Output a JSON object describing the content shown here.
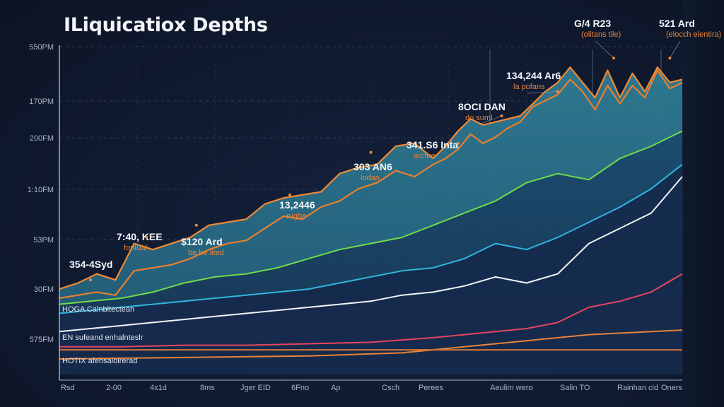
{
  "chart_data": {
    "type": "line",
    "title": "ILiquicatiox Depths",
    "xlabel": "",
    "ylabel": "",
    "grid": true,
    "legend": "none",
    "y_ticks": [
      "550PM",
      "170PM",
      "200FM",
      "1:10FM",
      "53PM",
      "30FM",
      "575FM"
    ],
    "x_ticks": [
      "Rsd",
      "2-00",
      "4x1d",
      "8ms",
      "Jger EID",
      "6Fno",
      "Ap",
      "Csch",
      "Perees",
      "Aeulim wero",
      "Salin TO",
      "Rainhan cid",
      "Oners"
    ],
    "x_range": [
      0,
      100
    ],
    "y_range": [
      0,
      100
    ],
    "series": [
      {
        "name": "Depth upper (orange)",
        "color": "#f08a35",
        "fill": "#2b6f86",
        "x": [
          0,
          3,
          6,
          9,
          12,
          15,
          18,
          21,
          24,
          27,
          30,
          33,
          36,
          39,
          42,
          45,
          48,
          51,
          54,
          57,
          60,
          62,
          64,
          66,
          68,
          70,
          72,
          74,
          76,
          78,
          80,
          82,
          84,
          86,
          88,
          90,
          92,
          94,
          96,
          98,
          100
        ],
        "values": [
          23,
          25,
          28,
          26,
          38,
          36,
          38,
          40,
          44,
          45,
          46,
          51,
          53,
          54,
          55,
          61,
          63,
          64,
          70,
          71,
          66,
          70,
          75,
          79,
          77,
          78,
          79,
          80,
          84,
          88,
          91,
          96,
          91,
          86,
          95,
          86,
          94,
          88,
          96,
          91,
          92
        ]
      },
      {
        "name": "Depth inner (orange)",
        "color": "#e87f2f",
        "x": [
          0,
          3,
          6,
          9,
          12,
          15,
          18,
          21,
          24,
          27,
          30,
          33,
          36,
          39,
          42,
          45,
          48,
          51,
          54,
          57,
          60,
          62,
          64,
          66,
          68,
          70,
          72,
          74,
          76,
          78,
          80,
          82,
          84,
          86,
          88,
          90,
          92,
          94,
          96,
          98,
          100
        ],
        "values": [
          20,
          21,
          22,
          21,
          29,
          30,
          31,
          33,
          36,
          38,
          39,
          43,
          47,
          46,
          50,
          52,
          56,
          58,
          62,
          60,
          64,
          66,
          69,
          74,
          71,
          73,
          76,
          78,
          83,
          85,
          87,
          92,
          88,
          82,
          90,
          84,
          90,
          86,
          95,
          89,
          91
        ]
      },
      {
        "name": "Green band",
        "color": "#6fdc4a",
        "fill": "#1d5673",
        "x": [
          0,
          5,
          10,
          15,
          20,
          25,
          30,
          35,
          40,
          45,
          50,
          55,
          60,
          65,
          70,
          75,
          80,
          85,
          90,
          95,
          100
        ],
        "values": [
          18,
          19,
          20,
          22,
          25,
          27,
          28,
          30,
          33,
          36,
          38,
          40,
          44,
          48,
          52,
          58,
          61,
          59,
          66,
          70,
          75
        ]
      },
      {
        "name": "Cyan line",
        "color": "#2fb6e0",
        "x": [
          0,
          5,
          10,
          15,
          20,
          25,
          30,
          35,
          40,
          45,
          50,
          55,
          60,
          65,
          70,
          75,
          80,
          85,
          90,
          95,
          100
        ],
        "values": [
          15,
          16,
          17,
          18,
          19,
          20,
          21,
          22,
          23,
          25,
          27,
          29,
          30,
          33,
          38,
          36,
          40,
          45,
          50,
          56,
          64
        ]
      },
      {
        "name": "White line",
        "color": "#f2f4f8",
        "x": [
          0,
          5,
          10,
          15,
          20,
          25,
          30,
          35,
          40,
          45,
          50,
          55,
          60,
          65,
          70,
          75,
          80,
          85,
          90,
          95,
          100
        ],
        "values": [
          9,
          10,
          11,
          12,
          13,
          14,
          15,
          16,
          17,
          18,
          19,
          21,
          22,
          24,
          27,
          25,
          28,
          38,
          43,
          48,
          60
        ]
      },
      {
        "name": "Red line",
        "color": "#e8445f",
        "x": [
          0,
          10,
          20,
          30,
          40,
          50,
          60,
          65,
          70,
          75,
          80,
          85,
          90,
          95,
          100
        ],
        "values": [
          4,
          4,
          4.5,
          4.5,
          5,
          5.5,
          7,
          8,
          9,
          10,
          12,
          17,
          19,
          22,
          28
        ]
      },
      {
        "name": "Orange baseline",
        "color": "#e8823a",
        "x": [
          0,
          20,
          40,
          55,
          65,
          75,
          85,
          95,
          100
        ],
        "values": [
          0,
          0.5,
          1,
          2,
          4,
          6,
          8,
          9,
          9.5
        ]
      },
      {
        "name": "Flat orange threshold",
        "color": "#d9753a",
        "x": [
          0,
          100
        ],
        "values": [
          3,
          3
        ]
      }
    ],
    "annotations": [
      {
        "value": "354-4Syd",
        "sub": "",
        "x": 5,
        "y": 26
      },
      {
        "value": "7:40, KEE",
        "sub": "fontual",
        "x": 14,
        "y": 40
      },
      {
        "value": "$120 Ard",
        "sub": "be be lited",
        "x": 22,
        "y": 44
      },
      {
        "value": "13,2446",
        "sub": "rughe",
        "x": 37,
        "y": 54
      },
      {
        "value": "303 AN6",
        "sub": "lodan",
        "x": 50,
        "y": 68
      },
      {
        "value": "341.S6 Inta",
        "sub": "arctire",
        "x": 64,
        "y": 71
      },
      {
        "value": "8OCI DAN",
        "sub": "do suml",
        "x": 71,
        "y": 80
      },
      {
        "value": "134,244 Ar6",
        "sub": "la pofans",
        "x": 80,
        "y": 88
      },
      {
        "value": "G/4 R23",
        "sub": "(olitans tile)",
        "x": 89,
        "y": 99
      },
      {
        "value": "521 Ard",
        "sub": "(elocch elentira)",
        "x": 98,
        "y": 99
      }
    ],
    "band_labels": [
      "HOGA Calnbltectean",
      "EN sufeand enhalnteslr",
      "HOTIX afehsaloirerad"
    ]
  }
}
